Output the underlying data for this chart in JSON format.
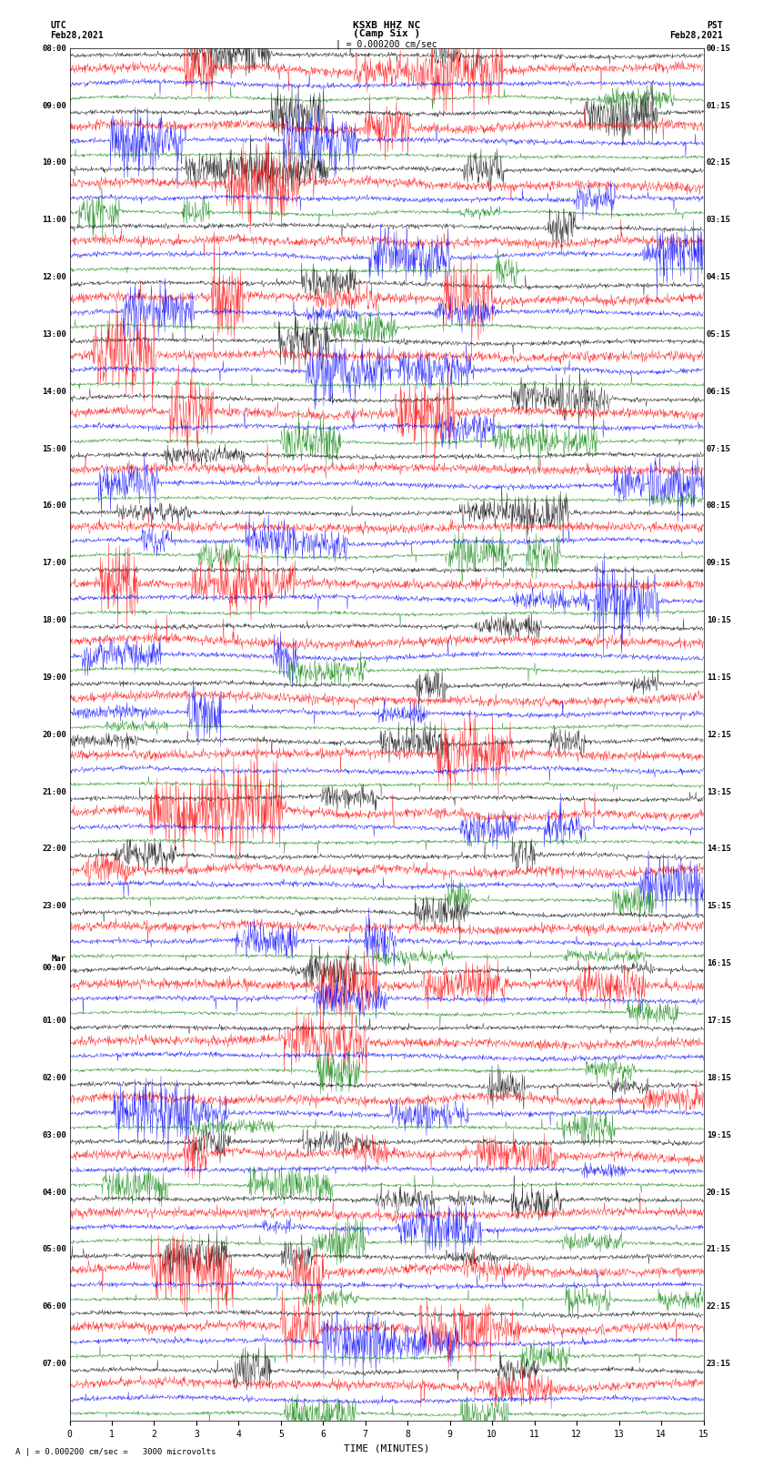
{
  "title_line1": "KSXB HHZ NC",
  "title_line2": "(Camp Six )",
  "scale_bar_label": "| = 0.000200 cm/sec",
  "left_label": "UTC\nFeb28,2021",
  "right_label": "PST\nFeb28,2021",
  "xlabel": "TIME (MINUTES)",
  "footnote": "A | = 0.000200 cm/sec =   3000 microvolts",
  "bg_color": "#ffffff",
  "trace_colors": [
    "black",
    "red",
    "blue",
    "green"
  ],
  "left_times_utc": [
    "08:00",
    "09:00",
    "10:00",
    "11:00",
    "12:00",
    "13:00",
    "14:00",
    "15:00",
    "16:00",
    "17:00",
    "18:00",
    "19:00",
    "20:00",
    "21:00",
    "22:00",
    "23:00",
    "Mar\n00:00",
    "01:00",
    "02:00",
    "03:00",
    "04:00",
    "05:00",
    "06:00",
    "07:00"
  ],
  "right_times_pst": [
    "00:15",
    "01:15",
    "02:15",
    "03:15",
    "04:15",
    "05:15",
    "06:15",
    "07:15",
    "08:15",
    "09:15",
    "10:15",
    "11:15",
    "12:15",
    "13:15",
    "14:15",
    "15:15",
    "16:15",
    "17:15",
    "18:15",
    "19:15",
    "20:15",
    "21:15",
    "22:15",
    "23:15"
  ],
  "n_rows": 24,
  "traces_per_row": 4,
  "minutes": 15,
  "amplitude_scale": 0.35,
  "noise_seed": 42,
  "n_pts": 1500
}
